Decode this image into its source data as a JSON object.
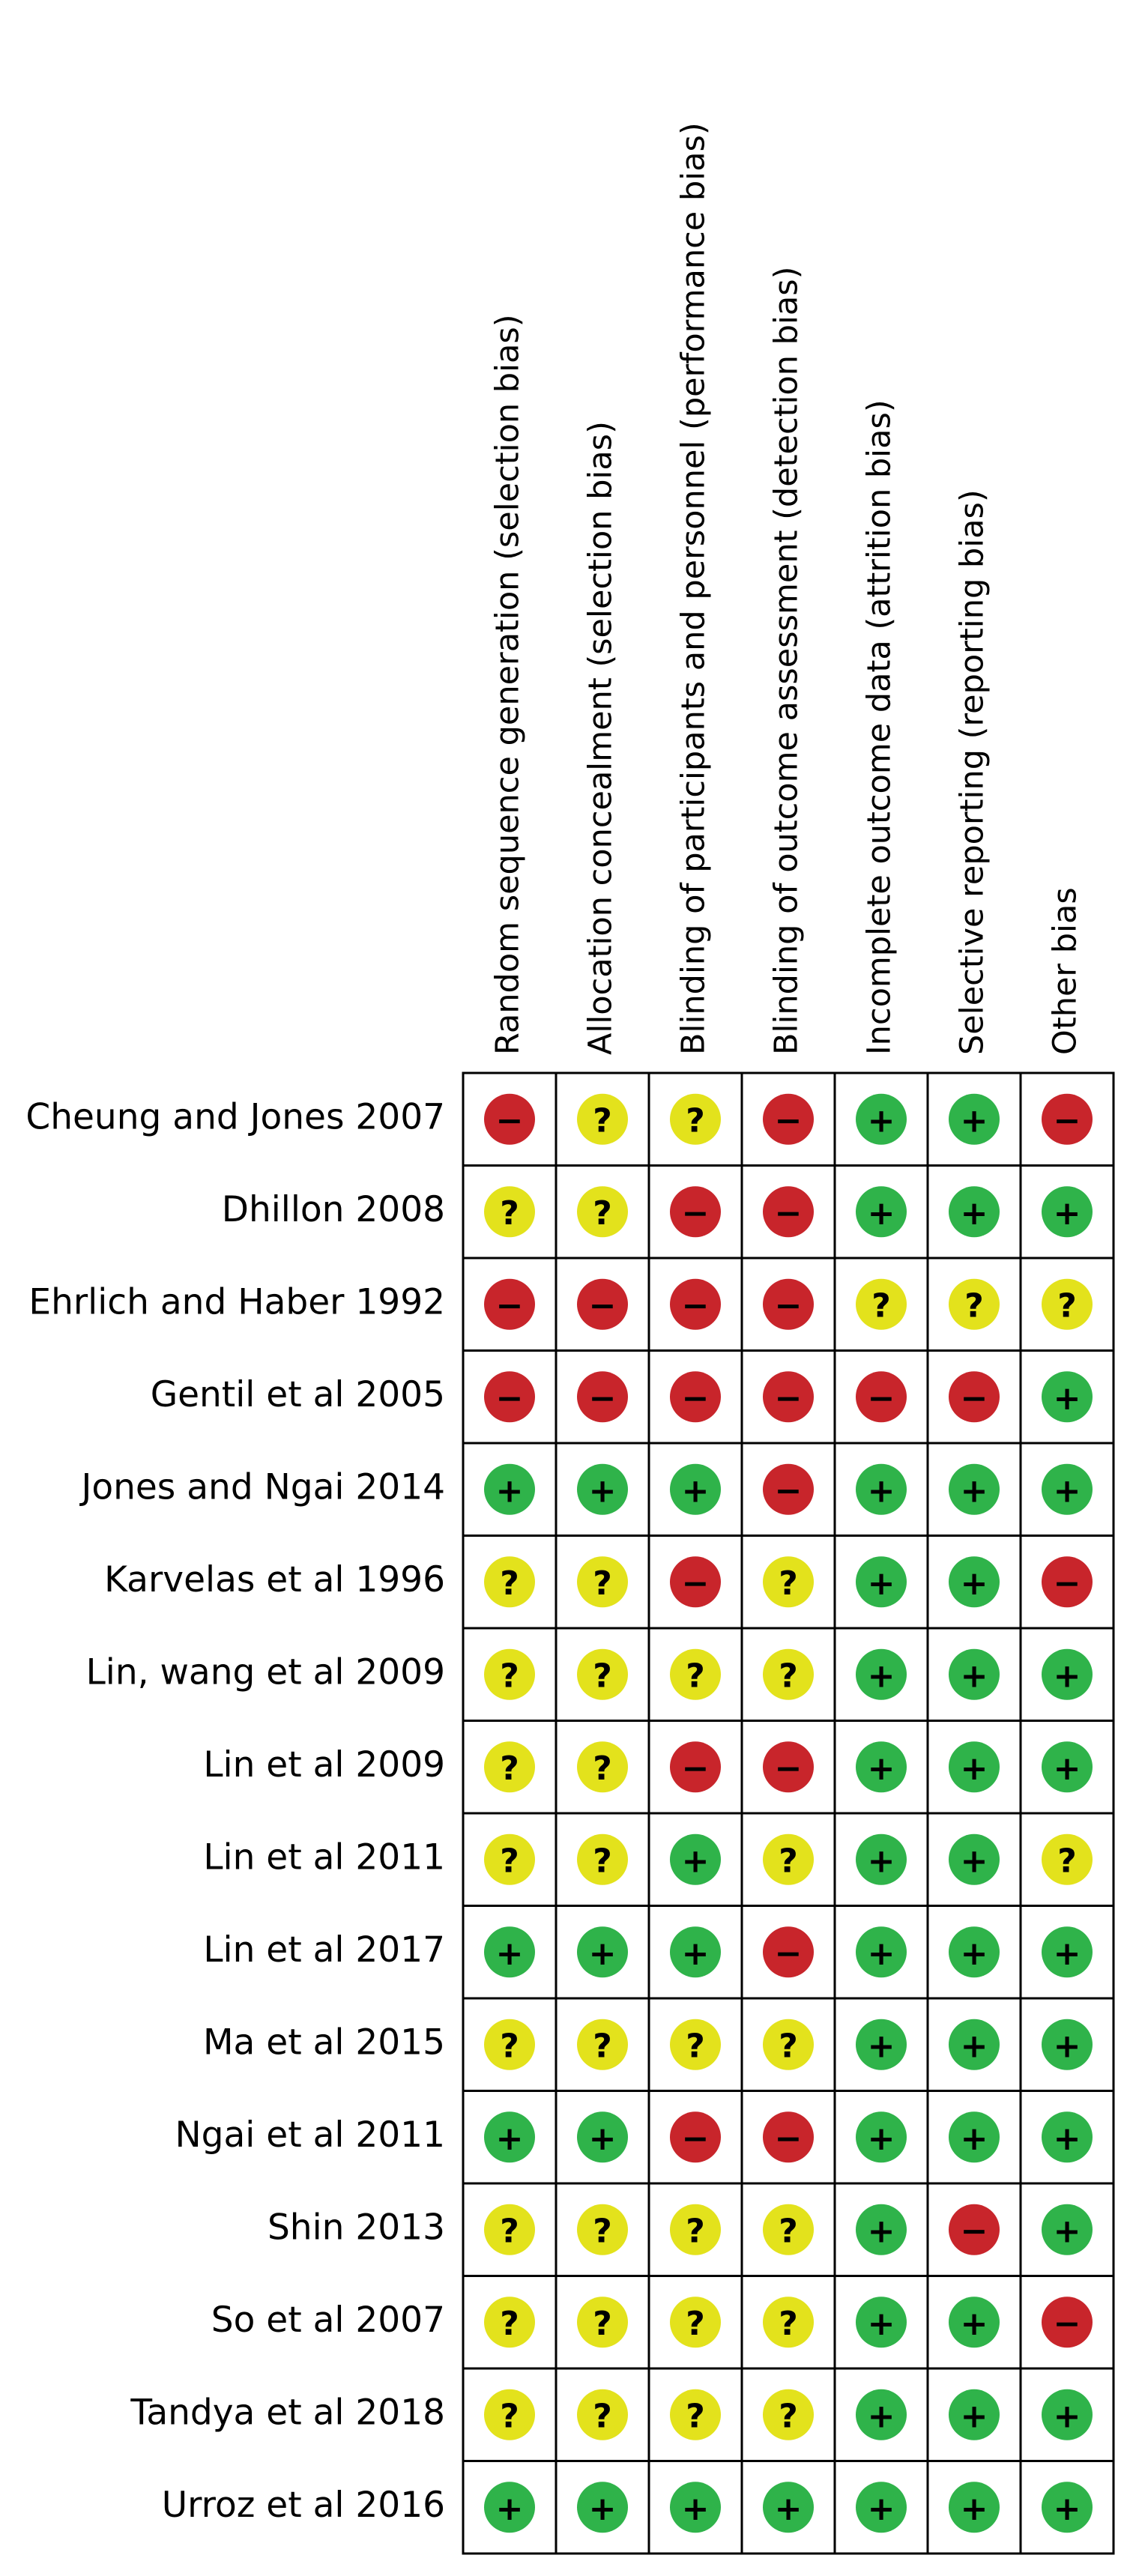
{
  "columns": [
    "Random sequence generation (selection bias)",
    "Allocation concealment (selection bias)",
    "Blinding of participants and personnel (performance bias)",
    "Blinding of outcome assessment (detection bias)",
    "Incomplete outcome data (attrition bias)",
    "Selective reporting (reporting bias)",
    "Other bias"
  ],
  "colors": {
    "+": "#2fb34a",
    "?": "#e3e21c",
    "−": "#c8252b"
  },
  "rows": [
    {
      "study": "Cheung and Jones 2007",
      "judgments": [
        "−",
        "?",
        "?",
        "−",
        "+",
        "+",
        "−"
      ]
    },
    {
      "study": "Dhillon 2008",
      "judgments": [
        "?",
        "?",
        "−",
        "−",
        "+",
        "+",
        "+"
      ]
    },
    {
      "study": "Ehrlich and Haber 1992",
      "judgments": [
        "−",
        "−",
        "−",
        "−",
        "?",
        "?",
        "?"
      ]
    },
    {
      "study": "Gentil et al 2005",
      "judgments": [
        "−",
        "−",
        "−",
        "−",
        "−",
        "−",
        "+"
      ]
    },
    {
      "study": "Jones and Ngai 2014",
      "judgments": [
        "+",
        "+",
        "+",
        "−",
        "+",
        "+",
        "+"
      ]
    },
    {
      "study": "Karvelas et al 1996",
      "judgments": [
        "?",
        "?",
        "−",
        "?",
        "+",
        "+",
        "−"
      ]
    },
    {
      "study": "Lin, wang et al 2009",
      "judgments": [
        "?",
        "?",
        "?",
        "?",
        "+",
        "+",
        "+"
      ]
    },
    {
      "study": "Lin et al 2009",
      "judgments": [
        "?",
        "?",
        "−",
        "−",
        "+",
        "+",
        "+"
      ]
    },
    {
      "study": "Lin et al 2011",
      "judgments": [
        "?",
        "?",
        "+",
        "?",
        "+",
        "+",
        "?"
      ]
    },
    {
      "study": "Lin et al 2017",
      "judgments": [
        "+",
        "+",
        "+",
        "−",
        "+",
        "+",
        "+"
      ]
    },
    {
      "study": "Ma et al 2015",
      "judgments": [
        "?",
        "?",
        "?",
        "?",
        "+",
        "+",
        "+"
      ]
    },
    {
      "study": "Ngai et al 2011",
      "judgments": [
        "+",
        "+",
        "−",
        "−",
        "+",
        "+",
        "+"
      ]
    },
    {
      "study": "Shin 2013",
      "judgments": [
        "?",
        "?",
        "?",
        "?",
        "+",
        "−",
        "+"
      ]
    },
    {
      "study": "So et al 2007",
      "judgments": [
        "?",
        "?",
        "?",
        "?",
        "+",
        "+",
        "−"
      ]
    },
    {
      "study": "Tandya et al 2018",
      "judgments": [
        "?",
        "?",
        "?",
        "?",
        "+",
        "+",
        "+"
      ]
    },
    {
      "study": "Urroz et al 2016",
      "judgments": [
        "+",
        "+",
        "+",
        "+",
        "+",
        "+",
        "+"
      ]
    }
  ]
}
